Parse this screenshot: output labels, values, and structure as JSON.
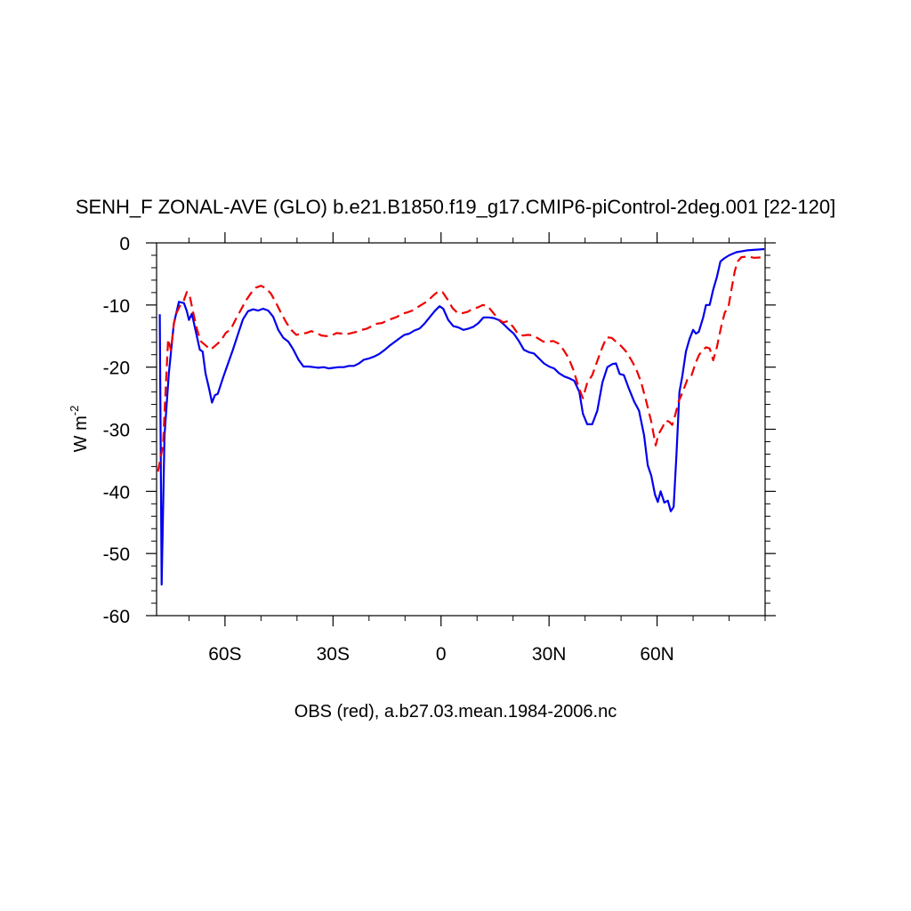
{
  "chart_data": {
    "type": "line",
    "title": "SENH_F ZONAL-AVE (GLO) b.e21.B1850.f19_g17.CMIP6-piControl-2deg.001 [22-120]",
    "subtitle": "OBS (red), a.b27.03.mean.1984-2006.nc",
    "ylabel_main": "W m",
    "ylabel_sup": "-2",
    "xlim": [
      -79,
      90
    ],
    "ylim": [
      -60,
      0
    ],
    "xticks": [
      {
        "value": -60,
        "label": "60S"
      },
      {
        "value": -30,
        "label": "30S"
      },
      {
        "value": 0,
        "label": "0"
      },
      {
        "value": 30,
        "label": "30N"
      },
      {
        "value": 60,
        "label": "60N"
      }
    ],
    "x_minor_step": 10,
    "yticks": [
      {
        "value": 0,
        "label": "0"
      },
      {
        "value": -10,
        "label": "-10"
      },
      {
        "value": -20,
        "label": "-20"
      },
      {
        "value": -30,
        "label": "-30"
      },
      {
        "value": -40,
        "label": "-40"
      },
      {
        "value": -50,
        "label": "-50"
      },
      {
        "value": -60,
        "label": "-60"
      }
    ],
    "y_minor_step": 2,
    "grid": false,
    "series": [
      {
        "key": "model",
        "color": "#0000ee",
        "dash": "solid",
        "points": [
          [
            -78.1,
            -11.5
          ],
          [
            -77.6,
            -55
          ],
          [
            -76.8,
            -31
          ],
          [
            -75.6,
            -21
          ],
          [
            -74.2,
            -13
          ],
          [
            -72.8,
            -9.5
          ],
          [
            -71.4,
            -9.7
          ],
          [
            -70.6,
            -11
          ],
          [
            -70.0,
            -12.4
          ],
          [
            -69.2,
            -11.4
          ],
          [
            -68.4,
            -13.5
          ],
          [
            -67.0,
            -17.2
          ],
          [
            -66.2,
            -17.5
          ],
          [
            -65.4,
            -21
          ],
          [
            -64.4,
            -23.5
          ],
          [
            -63.6,
            -25.7
          ],
          [
            -62.8,
            -24.5
          ],
          [
            -62.0,
            -24.3
          ],
          [
            -60.6,
            -21.8
          ],
          [
            -59.2,
            -19.5
          ],
          [
            -57.8,
            -17.2
          ],
          [
            -56.4,
            -14.7
          ],
          [
            -55.0,
            -12.3
          ],
          [
            -53.6,
            -11
          ],
          [
            -52.2,
            -10.7
          ],
          [
            -50.8,
            -10.9
          ],
          [
            -49.4,
            -10.6
          ],
          [
            -48.0,
            -10.9
          ],
          [
            -46.6,
            -11.9
          ],
          [
            -45.2,
            -14
          ],
          [
            -43.8,
            -15.3
          ],
          [
            -42.4,
            -15.9
          ],
          [
            -41.0,
            -17.2
          ],
          [
            -39.6,
            -18.8
          ],
          [
            -38.2,
            -19.9
          ],
          [
            -36.8,
            -19.9
          ],
          [
            -35.4,
            -20
          ],
          [
            -34.0,
            -20.1
          ],
          [
            -32.6,
            -20
          ],
          [
            -31.2,
            -20.2
          ],
          [
            -29.8,
            -20.1
          ],
          [
            -28.4,
            -20
          ],
          [
            -27.0,
            -20
          ],
          [
            -25.6,
            -19.8
          ],
          [
            -24.2,
            -19.8
          ],
          [
            -22.8,
            -19.4
          ],
          [
            -21.4,
            -18.8
          ],
          [
            -20.0,
            -18.6
          ],
          [
            -18.6,
            -18.3
          ],
          [
            -17.2,
            -17.9
          ],
          [
            -15.8,
            -17.3
          ],
          [
            -14.4,
            -16.6
          ],
          [
            -13.0,
            -16
          ],
          [
            -11.6,
            -15.4
          ],
          [
            -10.2,
            -14.8
          ],
          [
            -8.8,
            -14.6
          ],
          [
            -7.4,
            -14.1
          ],
          [
            -6.0,
            -13.8
          ],
          [
            -4.6,
            -13
          ],
          [
            -3.2,
            -12
          ],
          [
            -1.8,
            -11
          ],
          [
            -0.4,
            -10.2
          ],
          [
            0.6,
            -10.6
          ],
          [
            2.0,
            -12.4
          ],
          [
            3.4,
            -13.4
          ],
          [
            4.8,
            -13.6
          ],
          [
            6.2,
            -14
          ],
          [
            7.6,
            -13.8
          ],
          [
            9.0,
            -13.5
          ],
          [
            10.4,
            -12.9
          ],
          [
            11.8,
            -12
          ],
          [
            13.2,
            -12
          ],
          [
            14.6,
            -12.1
          ],
          [
            16.0,
            -12.4
          ],
          [
            17.4,
            -13.1
          ],
          [
            18.8,
            -13.9
          ],
          [
            20.2,
            -14.6
          ],
          [
            21.6,
            -15.8
          ],
          [
            23.0,
            -17.2
          ],
          [
            24.4,
            -17.6
          ],
          [
            25.8,
            -17.8
          ],
          [
            27.2,
            -18.6
          ],
          [
            28.6,
            -19.4
          ],
          [
            30.0,
            -19.9
          ],
          [
            31.4,
            -20.2
          ],
          [
            32.8,
            -21
          ],
          [
            34.2,
            -21.5
          ],
          [
            35.6,
            -21.8
          ],
          [
            37.0,
            -22.2
          ],
          [
            38.4,
            -24
          ],
          [
            39.4,
            -27.5
          ],
          [
            40.6,
            -29.2
          ],
          [
            42.0,
            -29.2
          ],
          [
            43.4,
            -27
          ],
          [
            44.8,
            -22.5
          ],
          [
            46.2,
            -20
          ],
          [
            47.6,
            -19.5
          ],
          [
            48.6,
            -19.4
          ],
          [
            49.6,
            -21.1
          ],
          [
            50.8,
            -21.3
          ],
          [
            52.2,
            -23.5
          ],
          [
            53.6,
            -25.5
          ],
          [
            55.0,
            -27
          ],
          [
            56.4,
            -31
          ],
          [
            57.4,
            -35.8
          ],
          [
            58.4,
            -37.5
          ],
          [
            59.4,
            -40.5
          ],
          [
            60.2,
            -41.7
          ],
          [
            61.0,
            -40
          ],
          [
            62.0,
            -41.8
          ],
          [
            63.0,
            -41.5
          ],
          [
            63.8,
            -43.2
          ],
          [
            64.6,
            -42.5
          ],
          [
            65.4,
            -34
          ],
          [
            66.2,
            -24
          ],
          [
            67.0,
            -21.5
          ],
          [
            68.0,
            -17.5
          ],
          [
            69.0,
            -15.5
          ],
          [
            70.0,
            -14
          ],
          [
            70.8,
            -14.6
          ],
          [
            71.6,
            -14.3
          ],
          [
            72.8,
            -12
          ],
          [
            73.6,
            -10
          ],
          [
            74.6,
            -10
          ],
          [
            75.6,
            -7.5
          ],
          [
            76.6,
            -5.5
          ],
          [
            77.6,
            -3
          ],
          [
            78.6,
            -2.5
          ],
          [
            80.0,
            -2
          ],
          [
            82.0,
            -1.5
          ],
          [
            85.0,
            -1.2
          ],
          [
            89.8,
            -1
          ]
        ]
      },
      {
        "key": "obs",
        "color": "#ee0000",
        "dash": "dashed",
        "points": [
          [
            -78.6,
            -36.8
          ],
          [
            -78.0,
            -35
          ],
          [
            -77.2,
            -32.5
          ],
          [
            -76.6,
            -25
          ],
          [
            -75.8,
            -15.5
          ],
          [
            -75.0,
            -17.3
          ],
          [
            -74.2,
            -13
          ],
          [
            -73.4,
            -11.2
          ],
          [
            -72.4,
            -10
          ],
          [
            -71.4,
            -9.2
          ],
          [
            -70.6,
            -7.9
          ],
          [
            -69.8,
            -8.5
          ],
          [
            -68.8,
            -11.3
          ],
          [
            -67.8,
            -13.8
          ],
          [
            -66.8,
            -15.8
          ],
          [
            -65.4,
            -16.5
          ],
          [
            -64.0,
            -17.2
          ],
          [
            -62.6,
            -16.5
          ],
          [
            -61.2,
            -15.8
          ],
          [
            -59.8,
            -14.5
          ],
          [
            -58.4,
            -13.9
          ],
          [
            -57.0,
            -12.3
          ],
          [
            -55.6,
            -10.8
          ],
          [
            -54.2,
            -9.3
          ],
          [
            -52.8,
            -8.1
          ],
          [
            -51.4,
            -7.2
          ],
          [
            -50.0,
            -6.9
          ],
          [
            -48.6,
            -7.3
          ],
          [
            -47.2,
            -8.2
          ],
          [
            -45.8,
            -9.7
          ],
          [
            -44.4,
            -11.3
          ],
          [
            -43.0,
            -12.8
          ],
          [
            -41.6,
            -14
          ],
          [
            -40.2,
            -14.8
          ],
          [
            -38.8,
            -14.6
          ],
          [
            -37.4,
            -14.5
          ],
          [
            -36.0,
            -14.2
          ],
          [
            -34.6,
            -14.5
          ],
          [
            -33.2,
            -14.9
          ],
          [
            -31.8,
            -15
          ],
          [
            -30.4,
            -14.9
          ],
          [
            -29.0,
            -14.5
          ],
          [
            -27.6,
            -14.6
          ],
          [
            -26.2,
            -14.7
          ],
          [
            -24.8,
            -14.5
          ],
          [
            -23.4,
            -14.3
          ],
          [
            -22.0,
            -14
          ],
          [
            -20.6,
            -13.8
          ],
          [
            -19.2,
            -13.4
          ],
          [
            -17.8,
            -13
          ],
          [
            -16.4,
            -12.9
          ],
          [
            -15.0,
            -12.5
          ],
          [
            -13.6,
            -12.2
          ],
          [
            -12.2,
            -11.9
          ],
          [
            -10.8,
            -11.4
          ],
          [
            -9.4,
            -11.2
          ],
          [
            -8.0,
            -10.9
          ],
          [
            -6.6,
            -10.4
          ],
          [
            -5.2,
            -9.9
          ],
          [
            -3.8,
            -9.4
          ],
          [
            -2.4,
            -8.6
          ],
          [
            -1.0,
            -7.9
          ],
          [
            0.4,
            -7.9
          ],
          [
            1.8,
            -9.1
          ],
          [
            3.2,
            -10.5
          ],
          [
            4.6,
            -11.3
          ],
          [
            6.0,
            -11.3
          ],
          [
            7.4,
            -11.1
          ],
          [
            8.8,
            -10.6
          ],
          [
            10.2,
            -10.4
          ],
          [
            11.6,
            -10
          ],
          [
            13.0,
            -10.2
          ],
          [
            14.4,
            -11.2
          ],
          [
            15.8,
            -12.2
          ],
          [
            17.2,
            -12.8
          ],
          [
            18.6,
            -12.6
          ],
          [
            20.0,
            -13.5
          ],
          [
            21.4,
            -14.7
          ],
          [
            22.8,
            -14.9
          ],
          [
            24.2,
            -14.8
          ],
          [
            25.6,
            -14.9
          ],
          [
            27.0,
            -15.4
          ],
          [
            28.4,
            -15.9
          ],
          [
            29.8,
            -15.9
          ],
          [
            31.2,
            -15.8
          ],
          [
            32.6,
            -16.2
          ],
          [
            34.0,
            -17.2
          ],
          [
            35.4,
            -18.5
          ],
          [
            36.8,
            -20.5
          ],
          [
            38.2,
            -23.2
          ],
          [
            39.4,
            -25
          ],
          [
            40.6,
            -22.5
          ],
          [
            42.0,
            -21.3
          ],
          [
            43.4,
            -19
          ],
          [
            44.8,
            -16.8
          ],
          [
            46.0,
            -15.2
          ],
          [
            47.4,
            -15.3
          ],
          [
            48.8,
            -16
          ],
          [
            50.0,
            -16.6
          ],
          [
            51.4,
            -17.5
          ],
          [
            52.8,
            -18.8
          ],
          [
            54.2,
            -20.3
          ],
          [
            55.6,
            -22.5
          ],
          [
            57.0,
            -25.5
          ],
          [
            58.4,
            -28.8
          ],
          [
            59.6,
            -32.6
          ],
          [
            60.4,
            -30.8
          ],
          [
            61.4,
            -29.8
          ],
          [
            62.4,
            -28.6
          ],
          [
            63.4,
            -28.8
          ],
          [
            64.2,
            -29.3
          ],
          [
            65.0,
            -27.8
          ],
          [
            66.0,
            -25.5
          ],
          [
            67.2,
            -23.9
          ],
          [
            68.4,
            -22
          ],
          [
            69.6,
            -21.3
          ],
          [
            70.6,
            -19.5
          ],
          [
            71.6,
            -18.1
          ],
          [
            72.6,
            -17.3
          ],
          [
            73.6,
            -16.8
          ],
          [
            74.6,
            -17
          ],
          [
            75.6,
            -18.9
          ],
          [
            76.6,
            -16.8
          ],
          [
            77.8,
            -13.5
          ],
          [
            78.8,
            -11.2
          ],
          [
            79.8,
            -10.4
          ],
          [
            80.8,
            -7
          ],
          [
            81.6,
            -4.5
          ],
          [
            82.4,
            -3
          ],
          [
            83.4,
            -2.3
          ],
          [
            85.0,
            -2.2
          ],
          [
            87.0,
            -2.4
          ],
          [
            89.8,
            -2.3
          ]
        ]
      }
    ]
  }
}
